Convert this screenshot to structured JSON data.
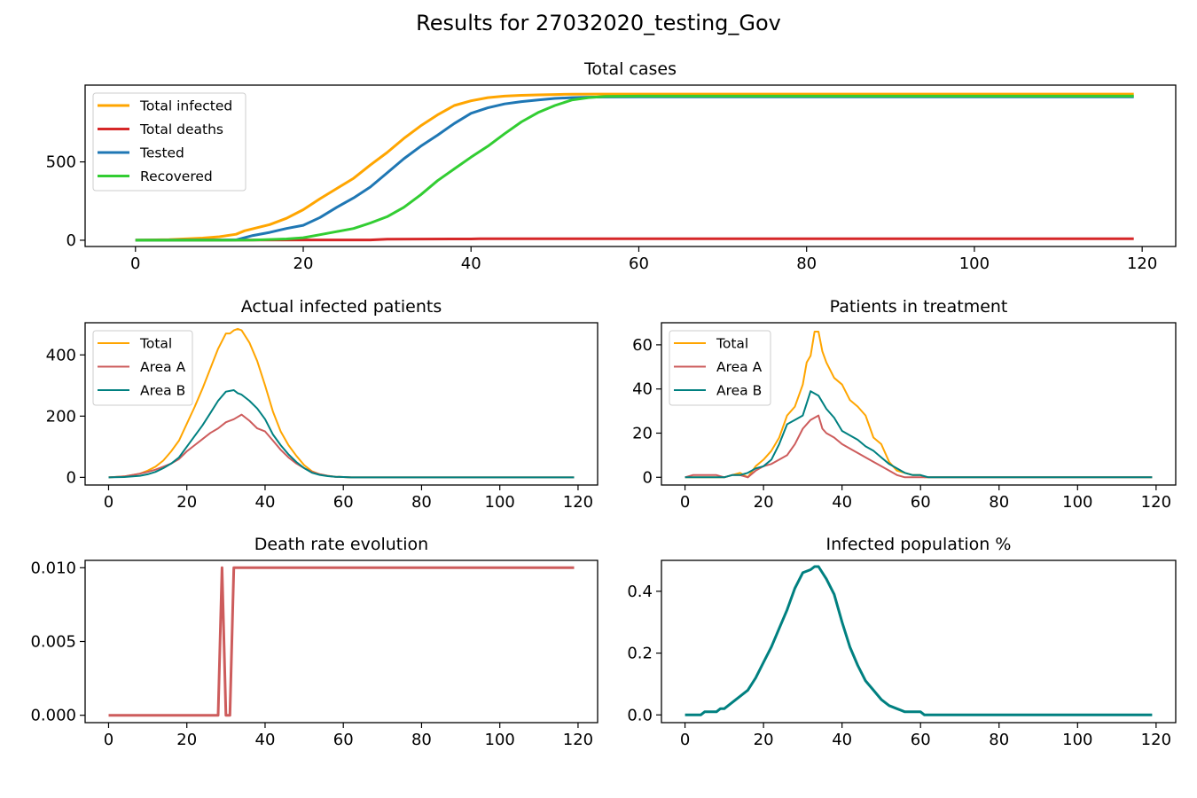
{
  "suptitle": "Results for 27032020_testing_Gov",
  "colors": {
    "orange": "#ffa500",
    "red": "#d62728",
    "blue": "#1f77b4",
    "green": "#32cd32",
    "indianred": "#cd5c5c",
    "teal": "#008080"
  },
  "chart_data": [
    {
      "id": "total",
      "type": "line",
      "title": "Total cases",
      "xlim": [
        -6,
        124
      ],
      "ylim": [
        -40,
        990
      ],
      "xticks": [
        0,
        20,
        40,
        60,
        80,
        100,
        120
      ],
      "yticks": [
        0,
        500
      ],
      "ytick_labels": [
        "0",
        "500"
      ],
      "legend": "top-left",
      "series": [
        {
          "name": "Total infected",
          "color": "#ffa500",
          "x": [
            0,
            4,
            8,
            10,
            12,
            13,
            16,
            18,
            20,
            22,
            24,
            26,
            28,
            30,
            32,
            34,
            36,
            38,
            40,
            42,
            44,
            46,
            48,
            50,
            52,
            55,
            60,
            119
          ],
          "y": [
            0,
            4,
            14,
            22,
            38,
            60,
            100,
            140,
            195,
            265,
            330,
            395,
            480,
            560,
            650,
            730,
            800,
            860,
            890,
            910,
            920,
            925,
            928,
            930,
            932,
            933,
            933,
            933
          ]
        },
        {
          "name": "Total deaths",
          "color": "#d62728",
          "x": [
            0,
            20,
            28,
            30,
            40,
            41,
            119
          ],
          "y": [
            0,
            2,
            2,
            7,
            8,
            10,
            10
          ]
        },
        {
          "name": "Tested",
          "color": "#1f77b4",
          "x": [
            0,
            12,
            14,
            16,
            18,
            20,
            22,
            24,
            26,
            28,
            30,
            32,
            34,
            36,
            38,
            40,
            42,
            44,
            46,
            48,
            50,
            52,
            54,
            56,
            60,
            119
          ],
          "y": [
            0,
            2,
            30,
            50,
            75,
            95,
            145,
            210,
            270,
            340,
            430,
            520,
            600,
            670,
            745,
            810,
            845,
            870,
            885,
            895,
            905,
            910,
            913,
            914,
            915,
            915
          ]
        },
        {
          "name": "Recovered",
          "color": "#32cd32",
          "x": [
            0,
            14,
            18,
            20,
            22,
            24,
            26,
            28,
            30,
            32,
            34,
            36,
            38,
            40,
            42,
            44,
            46,
            48,
            50,
            52,
            54,
            56,
            60,
            119
          ],
          "y": [
            0,
            1,
            8,
            16,
            35,
            55,
            75,
            110,
            150,
            210,
            290,
            380,
            455,
            530,
            600,
            680,
            755,
            815,
            860,
            895,
            910,
            918,
            920,
            920
          ]
        }
      ]
    },
    {
      "id": "actual",
      "type": "line",
      "title": "Actual infected patients",
      "xlim": [
        -6,
        125
      ],
      "ylim": [
        -25,
        505
      ],
      "xticks": [
        0,
        20,
        40,
        60,
        80,
        100,
        120
      ],
      "yticks": [
        0,
        200,
        400
      ],
      "ytick_labels": [
        "0",
        "200",
        "400"
      ],
      "legend": "top-left",
      "series": [
        {
          "name": "Total",
          "color": "#ffa500",
          "x": [
            0,
            4,
            8,
            10,
            12,
            14,
            16,
            18,
            20,
            22,
            24,
            26,
            28,
            30,
            31,
            32,
            33,
            34,
            36,
            38,
            40,
            42,
            44,
            46,
            48,
            50,
            52,
            54,
            56,
            58,
            60,
            62,
            119
          ],
          "y": [
            0,
            3,
            12,
            22,
            35,
            55,
            85,
            120,
            175,
            230,
            290,
            355,
            420,
            470,
            470,
            480,
            485,
            480,
            440,
            380,
            300,
            215,
            150,
            105,
            70,
            40,
            20,
            10,
            5,
            2,
            1,
            0,
            0
          ]
        },
        {
          "name": "Area A",
          "color": "#cd5c5c",
          "x": [
            0,
            4,
            8,
            10,
            12,
            14,
            16,
            18,
            20,
            22,
            24,
            26,
            28,
            30,
            32,
            34,
            36,
            38,
            40,
            42,
            44,
            46,
            48,
            50,
            52,
            54,
            56,
            58,
            60,
            62,
            119
          ],
          "y": [
            0,
            3,
            12,
            18,
            25,
            35,
            45,
            60,
            85,
            105,
            125,
            145,
            160,
            180,
            190,
            205,
            185,
            160,
            150,
            120,
            90,
            65,
            45,
            30,
            18,
            10,
            5,
            2,
            1,
            0,
            0
          ]
        },
        {
          "name": "Area B",
          "color": "#008080",
          "x": [
            0,
            4,
            8,
            10,
            12,
            14,
            16,
            18,
            20,
            22,
            24,
            26,
            28,
            30,
            32,
            33,
            34,
            36,
            38,
            40,
            42,
            44,
            46,
            48,
            50,
            52,
            54,
            56,
            58,
            60,
            62,
            119
          ],
          "y": [
            0,
            1,
            5,
            10,
            18,
            30,
            45,
            65,
            100,
            135,
            170,
            210,
            250,
            280,
            285,
            275,
            270,
            250,
            225,
            190,
            140,
            105,
            75,
            50,
            30,
            15,
            8,
            4,
            2,
            1,
            0,
            0
          ]
        }
      ]
    },
    {
      "id": "treatment",
      "type": "line",
      "title": "Patients in treatment",
      "xlim": [
        -6,
        125
      ],
      "ylim": [
        -3.5,
        70
      ],
      "xticks": [
        0,
        20,
        40,
        60,
        80,
        100,
        120
      ],
      "yticks": [
        0,
        20,
        40,
        60
      ],
      "ytick_labels": [
        "0",
        "20",
        "40",
        "60"
      ],
      "legend": "top-left",
      "series": [
        {
          "name": "Total",
          "color": "#ffa500",
          "x": [
            0,
            10,
            12,
            14,
            16,
            18,
            20,
            22,
            24,
            26,
            28,
            30,
            31,
            32,
            33,
            34,
            35,
            36,
            38,
            40,
            42,
            44,
            46,
            48,
            50,
            52,
            54,
            56,
            58,
            60,
            61,
            62,
            119
          ],
          "y": [
            0,
            0,
            1,
            2,
            0,
            5,
            8,
            12,
            18,
            28,
            32,
            42,
            52,
            55,
            66,
            66,
            57,
            52,
            45,
            42,
            35,
            32,
            28,
            18,
            15,
            7,
            3,
            2,
            1,
            1,
            0,
            0,
            0
          ]
        },
        {
          "name": "Area A",
          "color": "#cd5c5c",
          "x": [
            0,
            2,
            8,
            10,
            12,
            14,
            16,
            18,
            20,
            22,
            24,
            26,
            28,
            30,
            32,
            34,
            35,
            36,
            38,
            40,
            42,
            44,
            46,
            48,
            50,
            52,
            54,
            56,
            58,
            60,
            62,
            119
          ],
          "y": [
            0,
            1,
            1,
            0,
            1,
            1,
            0,
            3,
            5,
            6,
            8,
            10,
            15,
            22,
            26,
            28,
            22,
            20,
            18,
            15,
            13,
            11,
            9,
            7,
            5,
            3,
            1,
            0,
            0,
            0,
            0,
            0
          ]
        },
        {
          "name": "Area B",
          "color": "#008080",
          "x": [
            0,
            10,
            12,
            14,
            16,
            18,
            20,
            22,
            24,
            26,
            28,
            30,
            32,
            34,
            36,
            38,
            40,
            42,
            44,
            46,
            48,
            50,
            52,
            54,
            56,
            58,
            60,
            62,
            119
          ],
          "y": [
            0,
            0,
            1,
            1,
            2,
            4,
            5,
            8,
            15,
            24,
            26,
            28,
            39,
            37,
            31,
            27,
            21,
            19,
            17,
            14,
            12,
            9,
            6,
            4,
            2,
            1,
            1,
            0,
            0
          ]
        }
      ]
    },
    {
      "id": "deathrate",
      "type": "line",
      "title": "Death rate evolution",
      "xlim": [
        -6,
        125
      ],
      "ylim": [
        -0.0005,
        0.0105
      ],
      "xticks": [
        0,
        20,
        40,
        60,
        80,
        100,
        120
      ],
      "yticks": [
        0,
        0.005,
        0.01
      ],
      "ytick_labels": [
        "0.000",
        "0.005",
        "0.010"
      ],
      "legend": "none",
      "series": [
        {
          "name": "",
          "color": "#cd5c5c",
          "x": [
            0,
            28,
            29,
            30,
            31,
            32,
            119
          ],
          "y": [
            0,
            0,
            0.01,
            0,
            0,
            0.01,
            0.01
          ]
        }
      ]
    },
    {
      "id": "infpop",
      "type": "line",
      "title": "Infected population %",
      "xlim": [
        -6,
        125
      ],
      "ylim": [
        -0.025,
        0.5
      ],
      "xticks": [
        0,
        20,
        40,
        60,
        80,
        100,
        120
      ],
      "yticks": [
        0,
        0.2,
        0.4
      ],
      "ytick_labels": [
        "0.0",
        "0.2",
        "0.4"
      ],
      "legend": "none",
      "series": [
        {
          "name": "",
          "color": "#008080",
          "x": [
            0,
            4,
            5,
            8,
            9,
            10,
            12,
            14,
            16,
            18,
            20,
            22,
            24,
            26,
            28,
            30,
            32,
            33,
            34,
            36,
            38,
            40,
            42,
            44,
            46,
            48,
            50,
            52,
            54,
            56,
            58,
            60,
            61,
            62,
            119
          ],
          "y": [
            0,
            0,
            0.01,
            0.01,
            0.02,
            0.02,
            0.04,
            0.06,
            0.08,
            0.12,
            0.17,
            0.22,
            0.28,
            0.34,
            0.41,
            0.46,
            0.47,
            0.48,
            0.48,
            0.44,
            0.39,
            0.3,
            0.22,
            0.16,
            0.11,
            0.08,
            0.05,
            0.03,
            0.02,
            0.01,
            0.01,
            0.01,
            0,
            0,
            0
          ]
        }
      ]
    }
  ]
}
